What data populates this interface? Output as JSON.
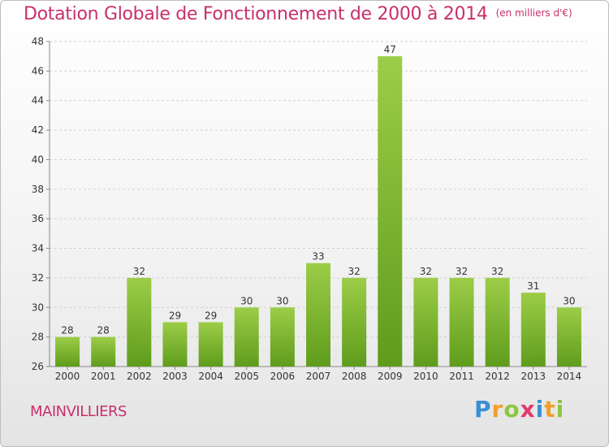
{
  "header": {
    "title": "Dotation Globale de Fonctionnement de 2000 à 2014",
    "unit": "(en milliers d'€)"
  },
  "footer": {
    "city": "MAINVILLIERS",
    "logo": "Proxiti"
  },
  "colors": {
    "title": "#c8306a",
    "bar_light": "#9ccd48",
    "bar_dark": "#5f9c1c",
    "grid": "#d0d0d0"
  },
  "chart_data": {
    "type": "bar",
    "title": "Dotation Globale de Fonctionnement de 2000 à 2014",
    "subtitle": "(en milliers d'€)",
    "xlabel": "",
    "ylabel": "",
    "categories": [
      "2000",
      "2001",
      "2002",
      "2003",
      "2004",
      "2005",
      "2006",
      "2007",
      "2008",
      "2009",
      "2010",
      "2011",
      "2012",
      "2013",
      "2014"
    ],
    "values": [
      28,
      28,
      32,
      29,
      29,
      30,
      30,
      33,
      32,
      47,
      32,
      32,
      32,
      31,
      30
    ],
    "ylim": [
      26,
      48
    ],
    "yticks": [
      26,
      28,
      30,
      32,
      34,
      36,
      38,
      40,
      42,
      44,
      46,
      48
    ],
    "grid": true,
    "legend": "none"
  }
}
